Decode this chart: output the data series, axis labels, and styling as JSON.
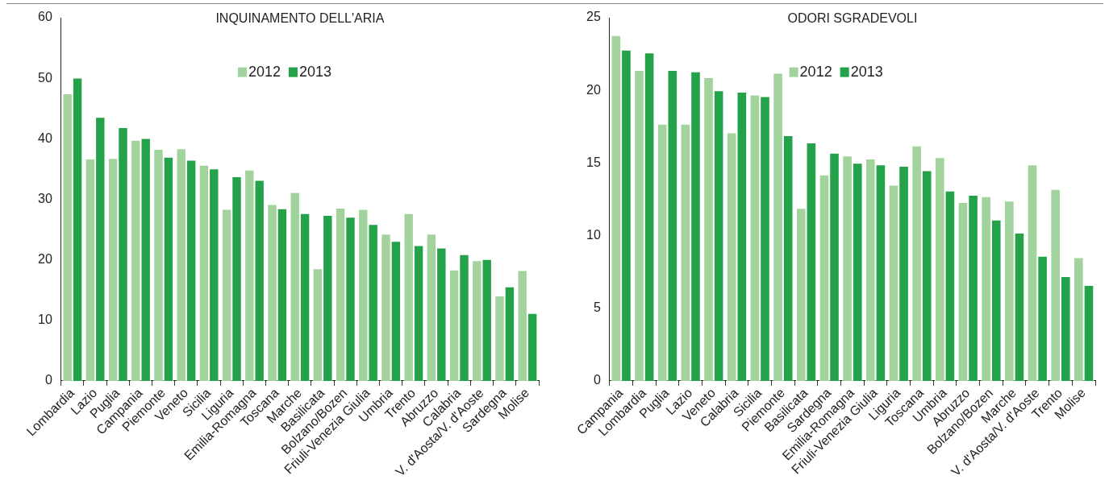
{
  "chart_data": [
    {
      "type": "bar",
      "title": "INQUINAMENTO DELL'ARIA",
      "categories": [
        "Lombardia",
        "Lazio",
        "Puglia",
        "Campania",
        "Piemonte",
        "Veneto",
        "Sicilia",
        "Liguria",
        "Emilia-Romagna",
        "Toscana",
        "Marche",
        "Basilicata",
        "Bolzano/Bozen",
        "Friuli-Venezia Giulia",
        "Umbria",
        "Trento",
        "Abruzzo",
        "Calabria",
        "V. d'Aosta/V. d'Aoste",
        "Sardegna",
        "Molise"
      ],
      "series": [
        {
          "name": "2012",
          "color": "#a3d39c",
          "values": [
            47.5,
            36.7,
            36.8,
            39.8,
            38.3,
            38.4,
            35.7,
            28.4,
            34.9,
            29.2,
            31.2,
            18.6,
            28.6,
            28.4,
            24.3,
            27.7,
            24.3,
            18.4,
            19.9,
            14.1,
            18.3
          ]
        },
        {
          "name": "2013",
          "color": "#24a249",
          "values": [
            50.1,
            43.6,
            41.9,
            40.1,
            37.0,
            36.5,
            35.1,
            33.8,
            33.2,
            28.5,
            27.7,
            27.4,
            27.1,
            25.9,
            23.1,
            22.4,
            22.0,
            20.9,
            20.1,
            15.6,
            11.2
          ]
        }
      ],
      "ylim": [
        0,
        60
      ],
      "yticks": [
        0,
        10,
        20,
        30,
        40,
        50,
        60
      ],
      "grid": false,
      "legend": "top"
    },
    {
      "type": "bar",
      "title": "ODORI SGRADEVOLI",
      "categories": [
        "Campania",
        "Lombardia",
        "Puglia",
        "Lazio",
        "Veneto",
        "Calabria",
        "Sicilia",
        "Piemonte",
        "Basilicata",
        "Sardegna",
        "Emilia-Romagna",
        "Friuli-Venezia Giulia",
        "Liguria",
        "Toscana",
        "Umbria",
        "Abruzzo",
        "Bolzano/Bozen",
        "Marche",
        "V. d'Aosta/V. d'Aoste",
        "Trento",
        "Molise"
      ],
      "series": [
        {
          "name": "2012",
          "color": "#a3d39c",
          "values": [
            23.8,
            21.4,
            17.7,
            17.7,
            20.9,
            17.1,
            19.7,
            21.2,
            11.9,
            14.2,
            15.5,
            15.3,
            13.5,
            16.2,
            15.4,
            12.3,
            12.7,
            12.4,
            14.9,
            13.2,
            8.5
          ]
        },
        {
          "name": "2013",
          "color": "#24a249",
          "values": [
            22.8,
            22.6,
            21.4,
            21.3,
            20.0,
            19.9,
            19.6,
            16.9,
            16.4,
            15.7,
            15.0,
            14.9,
            14.8,
            14.5,
            13.1,
            12.8,
            11.1,
            10.2,
            8.6,
            7.2,
            6.6
          ]
        }
      ],
      "ylim": [
        0,
        25
      ],
      "yticks": [
        0,
        5,
        10,
        15,
        20,
        25
      ],
      "grid": false,
      "legend": "top"
    }
  ]
}
